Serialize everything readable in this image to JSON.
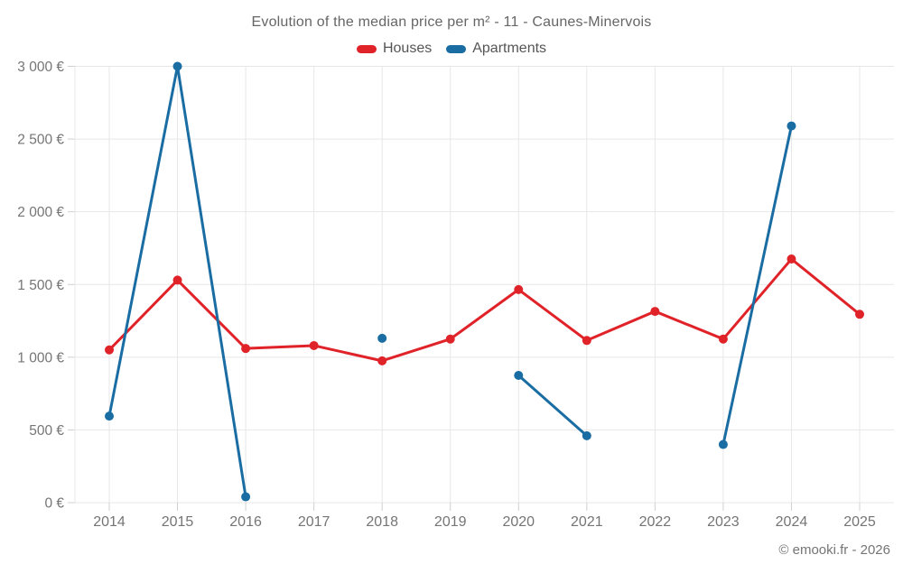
{
  "title": "Evolution of the median price per m² - 11 - Caunes-Minervois",
  "footer": "© emooki.fr - 2026",
  "legend": [
    {
      "label": "Houses",
      "color": "#e02329"
    },
    {
      "label": "Apartments",
      "color": "#1a6da3"
    }
  ],
  "chart_data": {
    "type": "line",
    "title": "Evolution of the median price per m² - 11 - Caunes-Minervois",
    "categories": [
      "2014",
      "2015",
      "2016",
      "2017",
      "2018",
      "2019",
      "2020",
      "2021",
      "2022",
      "2023",
      "2024",
      "2025"
    ],
    "series": [
      {
        "name": "Houses",
        "color": "#e02329",
        "values": [
          1050,
          1530,
          1060,
          1080,
          975,
          1125,
          1465,
          1115,
          1315,
          1125,
          1675,
          1295
        ]
      },
      {
        "name": "Apartments",
        "color": "#1a6da3",
        "values": [
          595,
          3000,
          40,
          null,
          1130,
          null,
          875,
          460,
          null,
          400,
          2590,
          null
        ]
      }
    ],
    "xlabel": "",
    "ylabel": "",
    "ylim": [
      0,
      3000
    ],
    "yticks": [
      0,
      500,
      1000,
      1500,
      2000,
      2500,
      3000
    ],
    "ytick_labels": [
      "0 €",
      "500 €",
      "1 000 €",
      "1 500 €",
      "2 000 €",
      "2 500 €",
      "3 000 €"
    ],
    "grid": true,
    "legend_position": "top",
    "marker": "circle",
    "colors": {
      "grid": "#e7e7e7",
      "tick": "#d0d0d0",
      "axis_text": "#757575"
    }
  }
}
